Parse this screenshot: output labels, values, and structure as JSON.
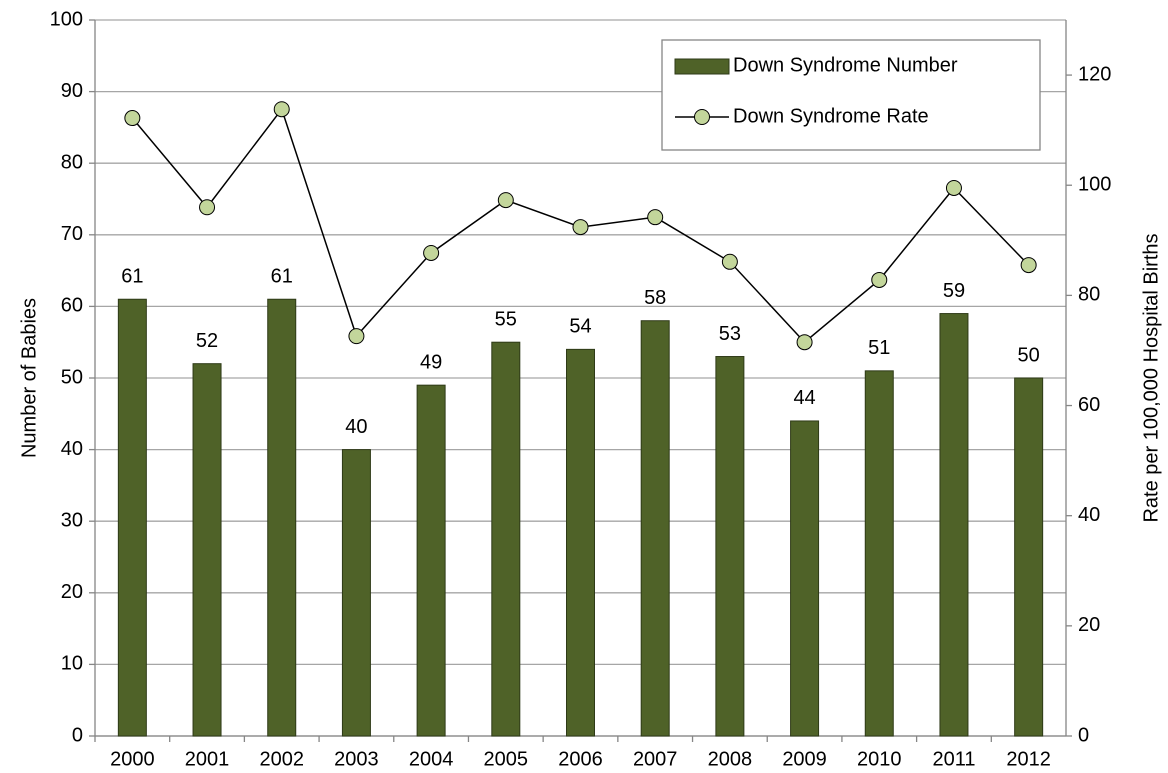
{
  "chart_data": {
    "type": "bar",
    "categories": [
      "2000",
      "2001",
      "2002",
      "2003",
      "2004",
      "2005",
      "2006",
      "2007",
      "2008",
      "2009",
      "2010",
      "2011",
      "2012"
    ],
    "series": [
      {
        "name": "Down Syndrome Number",
        "type": "bar",
        "color": "#4f6228",
        "values": [
          61,
          52,
          61,
          40,
          49,
          55,
          54,
          58,
          53,
          44,
          51,
          59,
          50
        ]
      },
      {
        "name": "Down Syndrome Rate",
        "type": "line",
        "axis": "y2",
        "color": "#000000",
        "marker_color": "#c3d69b",
        "values": [
          112.2,
          96.0,
          113.8,
          72.6,
          87.7,
          97.3,
          92.4,
          94.2,
          86.1,
          71.5,
          82.8,
          99.5,
          85.5
        ]
      }
    ],
    "ylabel": "Number of  Babies",
    "y2label": "Rate per 100,000  Hospital Births",
    "ylim": [
      0,
      100
    ],
    "yticks": [
      0,
      10,
      20,
      30,
      40,
      50,
      60,
      70,
      80,
      90,
      100
    ],
    "y2lim": [
      0,
      130
    ],
    "y2ticks": [
      0,
      20,
      40,
      60,
      80,
      100,
      120
    ],
    "grid": true,
    "legend": "upper right"
  }
}
